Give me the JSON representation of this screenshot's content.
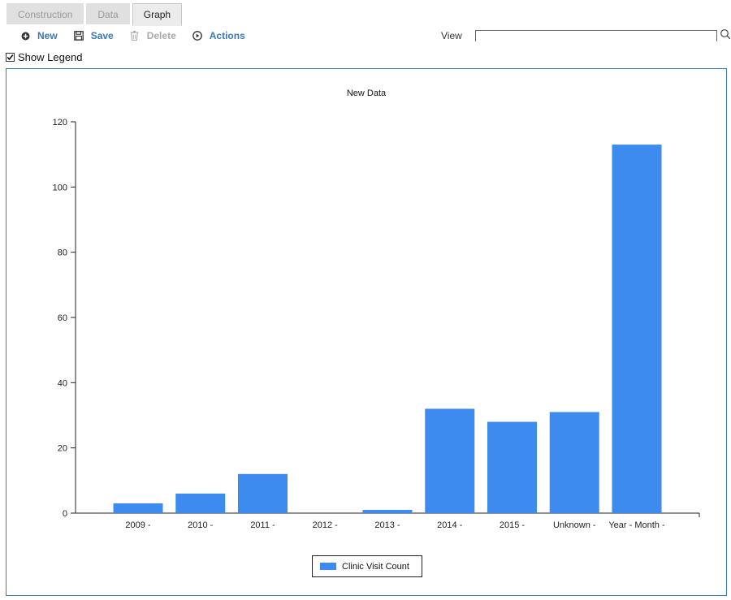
{
  "tabs": [
    {
      "label": "Construction",
      "active": false
    },
    {
      "label": "Data",
      "active": false
    },
    {
      "label": "Graph",
      "active": true
    }
  ],
  "toolbar": {
    "new_label": "New",
    "save_label": "Save",
    "delete_label": "Delete",
    "actions_label": "Actions",
    "view_label": "View",
    "view_value": ""
  },
  "show_legend": {
    "label": "Show Legend",
    "checked": true
  },
  "colors": {
    "bar": "#3d8bef",
    "accent": "#3a78b8",
    "panel_border": "#3a7fb0"
  },
  "chart_data": {
    "type": "bar",
    "title": "New Data",
    "categories": [
      "2009 -",
      "2010 -",
      "2011 -",
      "2012 -",
      "2013 -",
      "2014 -",
      "2015 -",
      "Unknown -",
      "Year - Month -"
    ],
    "series": [
      {
        "name": "Clinic Visit Count",
        "values": [
          3,
          6,
          12,
          0,
          1,
          32,
          28,
          31,
          113
        ]
      }
    ],
    "yticks": [
      0,
      20,
      40,
      60,
      80,
      100,
      120
    ],
    "ylim": [
      0,
      120
    ],
    "xlabel": "",
    "ylabel": "",
    "grid": false,
    "legend": "bottom-center"
  }
}
